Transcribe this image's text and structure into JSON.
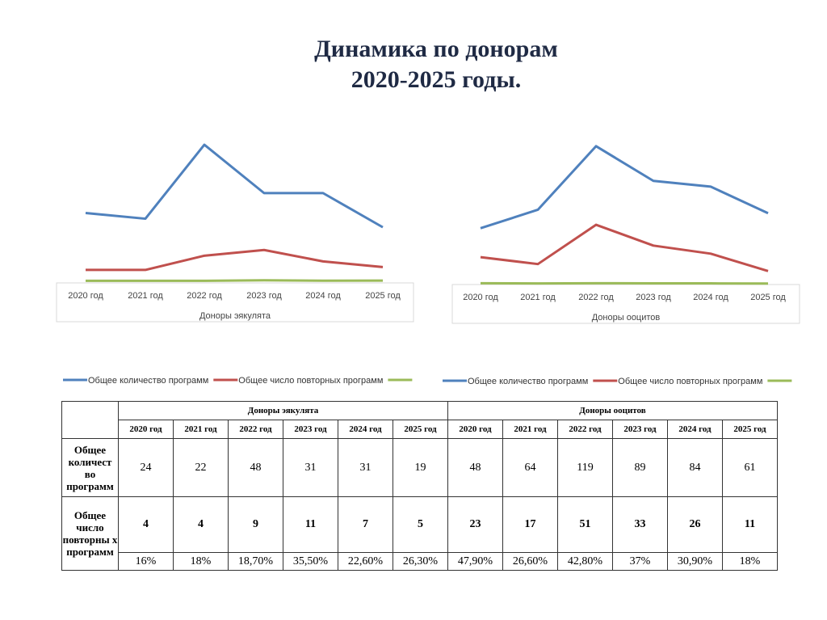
{
  "title_line1": "Динамика по донорам",
  "title_line2": "2020-2025 годы.",
  "chart_data": [
    {
      "type": "line",
      "categories": [
        "2020 год",
        "2021 год",
        "2022 год",
        "2023 год",
        "2024 год",
        "2025 год"
      ],
      "xlabel": "Доноры эякулята",
      "grid": false,
      "legend": "bottom",
      "series": [
        {
          "name": "Общее количество программ",
          "color": "#4f81bd",
          "values": [
            24,
            22,
            48,
            31,
            31,
            19
          ]
        },
        {
          "name": "Общее число повторных программ",
          "color": "#c0504d",
          "values": [
            4,
            4,
            9,
            11,
            7,
            5
          ]
        },
        {
          "name": "",
          "color": "#9bbb59",
          "values": [
            0.16,
            0.18,
            0.187,
            0.355,
            0.226,
            0.263
          ]
        }
      ]
    },
    {
      "type": "line",
      "categories": [
        "2020 год",
        "2021 год",
        "2022 год",
        "2023 год",
        "2024 год",
        "2025 год"
      ],
      "xlabel": "Доноры ооцитов",
      "grid": false,
      "legend": "bottom",
      "series": [
        {
          "name": "Общее количество программ",
          "color": "#4f81bd",
          "values": [
            48,
            64,
            119,
            89,
            84,
            61
          ]
        },
        {
          "name": "Общее число повторных программ",
          "color": "#c0504d",
          "values": [
            23,
            17,
            51,
            33,
            26,
            11
          ]
        },
        {
          "name": "",
          "color": "#9bbb59",
          "values": [
            0.479,
            0.266,
            0.428,
            0.37,
            0.309,
            0.18
          ]
        }
      ]
    }
  ],
  "table": {
    "group1": "Доноры эякулята",
    "group2": "Доноры ооцитов",
    "years": [
      "2020 год",
      "2021 год",
      "2022 год",
      "2023 год",
      "2024 год",
      "2025 год",
      "2020 год",
      "2021 год",
      "2022 год",
      "2023 год",
      "2024 год",
      "2025 год"
    ],
    "row1_label": "Общее количест во программ",
    "row1": [
      "24",
      "22",
      "48",
      "31",
      "31",
      "19",
      "48",
      "64",
      "119",
      "89",
      "84",
      "61"
    ],
    "row2_label": "Общее число повторны х программ",
    "row2": [
      "4",
      "4",
      "9",
      "11",
      "7",
      "5",
      "23",
      "17",
      "51",
      "33",
      "26",
      "11"
    ],
    "row3": [
      "16%",
      "18%",
      "18,70%",
      "35,50%",
      "22,60%",
      "26,30%",
      "47,90%",
      "26,60%",
      "42,80%",
      "37%",
      "30,90%",
      "18%"
    ]
  }
}
